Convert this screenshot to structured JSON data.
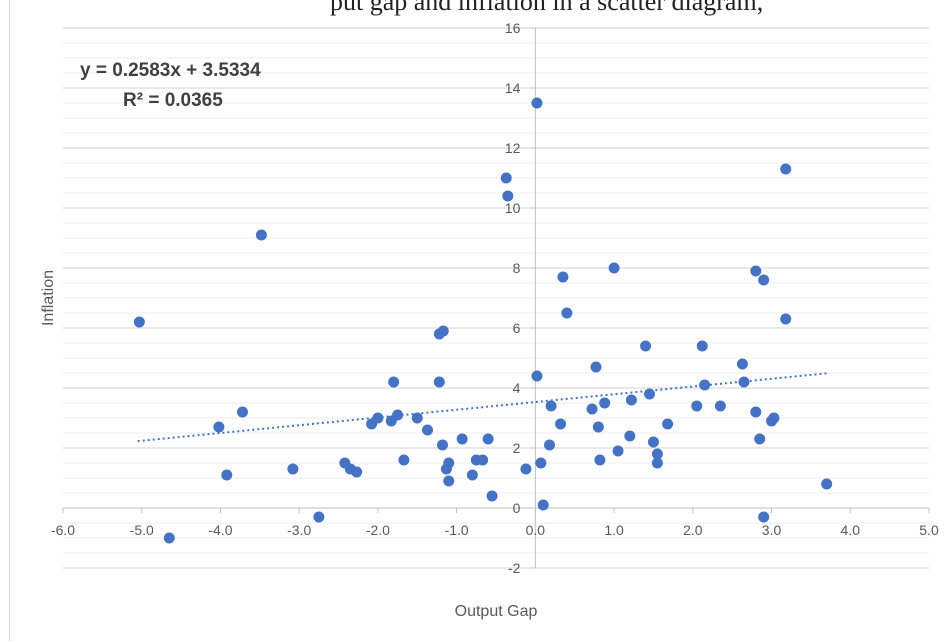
{
  "page": {
    "caption_fragment": "put gap and inflation in a scatter diagram,"
  },
  "chart_data": {
    "type": "scatter",
    "title": "",
    "xlabel": "Output Gap",
    "ylabel": "Inflation",
    "xlim": [
      -6,
      5
    ],
    "ylim": [
      -2,
      16
    ],
    "x_ticks": [
      -6,
      -5,
      -4,
      -3,
      -2,
      -1,
      0,
      1,
      2,
      3,
      4,
      5
    ],
    "x_tick_labels": [
      "-6.0",
      "-5.0",
      "-4.0",
      "-3.0",
      "-2.0",
      "-1.0",
      "0.0",
      "1.0",
      "2.0",
      "3.0",
      "4.0",
      "5.0"
    ],
    "y_ticks": [
      -2,
      0,
      2,
      4,
      6,
      8,
      10,
      12,
      14,
      16
    ],
    "y_tick_labels": [
      "-2",
      "0",
      "2",
      "4",
      "6",
      "8",
      "10",
      "12",
      "14",
      "16"
    ],
    "grid": "horizontal",
    "marker_color": "#4472C4",
    "trendline": {
      "slope": 0.2583,
      "intercept": 3.5334,
      "x_range": [
        -5.05,
        3.7
      ],
      "color": "#4472C4",
      "style": "dotted"
    },
    "annotations": {
      "equation": "y = 0.2583x + 3.5334",
      "r_squared": "R² = 0.0365"
    },
    "points": [
      {
        "x": -5.03,
        "y": 6.2
      },
      {
        "x": -4.65,
        "y": -1.0
      },
      {
        "x": -4.02,
        "y": 2.7
      },
      {
        "x": -3.92,
        "y": 1.1
      },
      {
        "x": -3.72,
        "y": 3.2
      },
      {
        "x": -3.48,
        "y": 9.1
      },
      {
        "x": -3.08,
        "y": 1.3
      },
      {
        "x": -2.75,
        "y": -0.3
      },
      {
        "x": -2.42,
        "y": 1.5
      },
      {
        "x": -2.35,
        "y": 1.3
      },
      {
        "x": -2.27,
        "y": 1.2
      },
      {
        "x": -2.08,
        "y": 2.8
      },
      {
        "x": -2.0,
        "y": 3.0
      },
      {
        "x": -1.83,
        "y": 2.9
      },
      {
        "x": -1.8,
        "y": 4.2
      },
      {
        "x": -1.75,
        "y": 3.1
      },
      {
        "x": -1.67,
        "y": 1.6
      },
      {
        "x": -1.5,
        "y": 3.0
      },
      {
        "x": -1.37,
        "y": 2.6
      },
      {
        "x": -1.22,
        "y": 4.2
      },
      {
        "x": -1.22,
        "y": 5.8
      },
      {
        "x": -1.17,
        "y": 5.9
      },
      {
        "x": -1.18,
        "y": 2.1
      },
      {
        "x": -1.13,
        "y": 1.3
      },
      {
        "x": -1.1,
        "y": 1.5
      },
      {
        "x": -1.1,
        "y": 0.9
      },
      {
        "x": -0.93,
        "y": 2.3
      },
      {
        "x": -0.8,
        "y": 1.1
      },
      {
        "x": -0.75,
        "y": 1.6
      },
      {
        "x": -0.67,
        "y": 1.6
      },
      {
        "x": -0.6,
        "y": 2.3
      },
      {
        "x": -0.55,
        "y": 0.4
      },
      {
        "x": -0.12,
        "y": 1.3
      },
      {
        "x": -0.37,
        "y": 11.0
      },
      {
        "x": -0.35,
        "y": 10.4
      },
      {
        "x": 0.02,
        "y": 13.5
      },
      {
        "x": 0.02,
        "y": 4.4
      },
      {
        "x": 0.07,
        "y": 1.5
      },
      {
        "x": 0.1,
        "y": 0.1
      },
      {
        "x": 0.18,
        "y": 2.1
      },
      {
        "x": 0.2,
        "y": 3.4
      },
      {
        "x": 0.32,
        "y": 2.8
      },
      {
        "x": 0.35,
        "y": 7.7
      },
      {
        "x": 0.4,
        "y": 6.5
      },
      {
        "x": 0.72,
        "y": 3.3
      },
      {
        "x": 0.77,
        "y": 4.7
      },
      {
        "x": 0.8,
        "y": 2.7
      },
      {
        "x": 0.82,
        "y": 1.6
      },
      {
        "x": 0.88,
        "y": 3.5
      },
      {
        "x": 1.0,
        "y": 8.0
      },
      {
        "x": 1.05,
        "y": 1.9
      },
      {
        "x": 1.2,
        "y": 2.4
      },
      {
        "x": 1.22,
        "y": 3.6
      },
      {
        "x": 1.4,
        "y": 5.4
      },
      {
        "x": 1.45,
        "y": 3.8
      },
      {
        "x": 1.5,
        "y": 2.2
      },
      {
        "x": 1.55,
        "y": 1.8
      },
      {
        "x": 1.55,
        "y": 1.5
      },
      {
        "x": 1.68,
        "y": 2.8
      },
      {
        "x": 2.05,
        "y": 3.4
      },
      {
        "x": 2.12,
        "y": 5.4
      },
      {
        "x": 2.15,
        "y": 4.1
      },
      {
        "x": 2.35,
        "y": 3.4
      },
      {
        "x": 2.63,
        "y": 4.8
      },
      {
        "x": 2.65,
        "y": 4.2
      },
      {
        "x": 2.8,
        "y": 7.9
      },
      {
        "x": 2.8,
        "y": 3.2
      },
      {
        "x": 2.85,
        "y": 2.3
      },
      {
        "x": 2.9,
        "y": 7.6
      },
      {
        "x": 2.9,
        "y": -0.3
      },
      {
        "x": 3.0,
        "y": 2.9
      },
      {
        "x": 3.03,
        "y": 3.0
      },
      {
        "x": 3.18,
        "y": 11.3
      },
      {
        "x": 3.18,
        "y": 6.3
      },
      {
        "x": 3.7,
        "y": 0.8
      }
    ]
  }
}
